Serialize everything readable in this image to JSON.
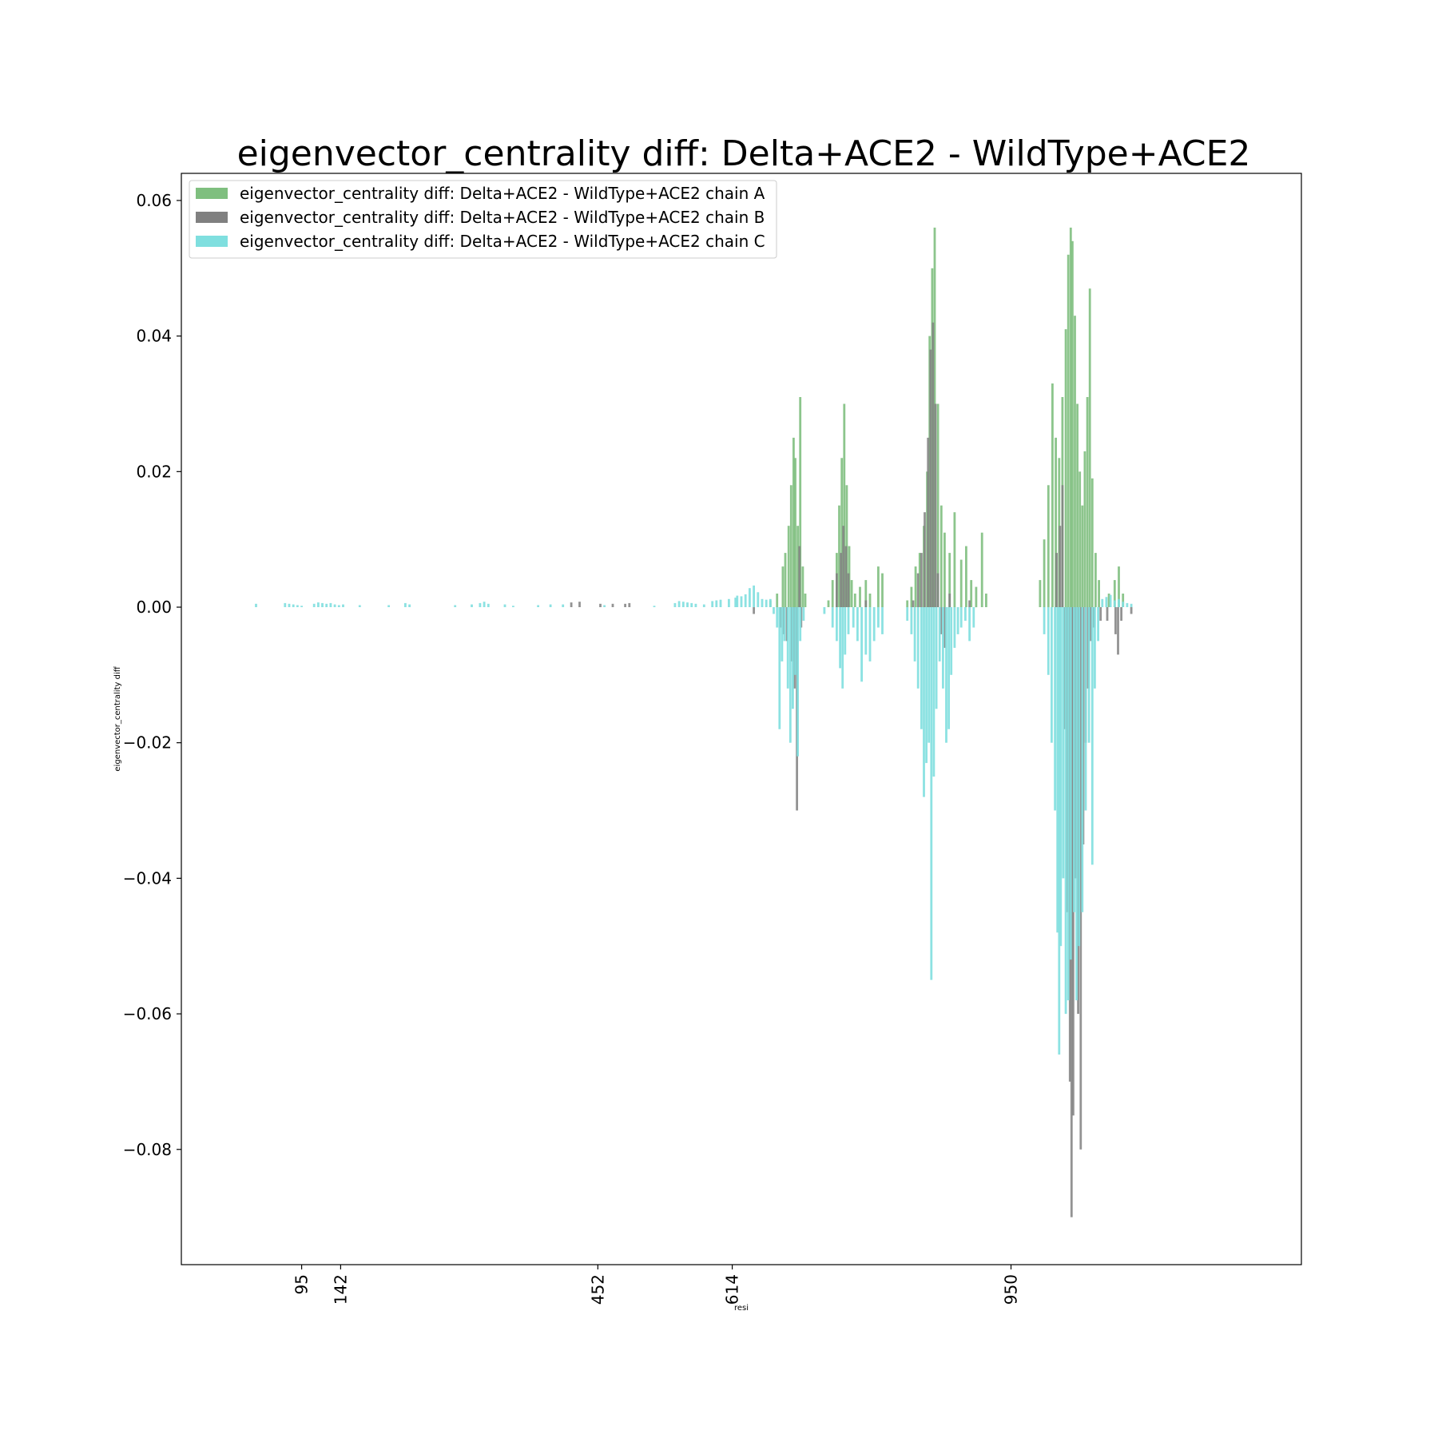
{
  "chart_data": {
    "type": "bar",
    "title": "eigenvector_centrality diff: Delta+ACE2 - WildType+ACE2",
    "xlabel": "resi",
    "ylabel": "eigenvector_centrality diff",
    "xlim": [
      -50,
      1300
    ],
    "ylim": [
      -0.097,
      0.064
    ],
    "x_ticks": [
      95,
      142,
      452,
      614,
      950
    ],
    "y_ticks": [
      0.06,
      0.04,
      0.02,
      0.0,
      -0.02,
      -0.04,
      -0.06,
      -0.08
    ],
    "y_tick_labels": [
      "0.06",
      "0.04",
      "0.02",
      "0.00",
      "−0.02",
      "−0.04",
      "−0.06",
      "−0.08"
    ],
    "grid": false,
    "legend_position": "top-left",
    "series": [
      {
        "name": "eigenvector_centrality diff: Delta+ACE2 - WildType+ACE2 chain A",
        "color": "#7fbf7f",
        "points": [
          [
            660,
            0.001
          ],
          [
            668,
            0.002
          ],
          [
            675,
            0.006
          ],
          [
            678,
            0.008
          ],
          [
            682,
            0.012
          ],
          [
            685,
            0.018
          ],
          [
            688,
            0.025
          ],
          [
            690,
            0.022
          ],
          [
            693,
            0.012
          ],
          [
            696,
            0.031
          ],
          [
            699,
            0.006
          ],
          [
            702,
            0.002
          ],
          [
            730,
            0.001
          ],
          [
            735,
            0.004
          ],
          [
            740,
            0.008
          ],
          [
            743,
            0.015
          ],
          [
            746,
            0.022
          ],
          [
            749,
            0.03
          ],
          [
            752,
            0.018
          ],
          [
            755,
            0.009
          ],
          [
            758,
            0.004
          ],
          [
            762,
            0.002
          ],
          [
            768,
            0.003
          ],
          [
            775,
            0.004
          ],
          [
            780,
            0.002
          ],
          [
            790,
            0.006
          ],
          [
            795,
            0.005
          ],
          [
            825,
            0.001
          ],
          [
            830,
            0.003
          ],
          [
            835,
            0.006
          ],
          [
            840,
            0.008
          ],
          [
            845,
            0.012
          ],
          [
            849,
            0.02
          ],
          [
            852,
            0.04
          ],
          [
            855,
            0.05
          ],
          [
            858,
            0.056
          ],
          [
            862,
            0.03
          ],
          [
            866,
            0.015
          ],
          [
            870,
            0.011
          ],
          [
            876,
            0.008
          ],
          [
            882,
            0.014
          ],
          [
            890,
            0.007
          ],
          [
            896,
            0.009
          ],
          [
            902,
            0.004
          ],
          [
            908,
            0.003
          ],
          [
            915,
            0.011
          ],
          [
            920,
            0.002
          ],
          [
            985,
            0.004
          ],
          [
            990,
            0.01
          ],
          [
            995,
            0.018
          ],
          [
            1000,
            0.033
          ],
          [
            1004,
            0.025
          ],
          [
            1008,
            0.022
          ],
          [
            1012,
            0.031
          ],
          [
            1016,
            0.041
          ],
          [
            1019,
            0.052
          ],
          [
            1022,
            0.056
          ],
          [
            1024,
            0.054
          ],
          [
            1027,
            0.043
          ],
          [
            1030,
            0.03
          ],
          [
            1033,
            0.02
          ],
          [
            1036,
            0.015
          ],
          [
            1039,
            0.023
          ],
          [
            1042,
            0.031
          ],
          [
            1045,
            0.047
          ],
          [
            1048,
            0.019
          ],
          [
            1052,
            0.008
          ],
          [
            1056,
            0.004
          ],
          [
            1068,
            0.002
          ],
          [
            1075,
            0.004
          ],
          [
            1080,
            0.006
          ],
          [
            1085,
            0.002
          ]
        ]
      },
      {
        "name": "eigenvector_centrality diff: Delta+ACE2 - WildType+ACE2 chain B",
        "color": "#808080",
        "points": [
          [
            420,
            0.0007
          ],
          [
            430,
            0.0008
          ],
          [
            455,
            0.0005
          ],
          [
            470,
            0.0005
          ],
          [
            485,
            0.0005
          ],
          [
            490,
            0.0006
          ],
          [
            640,
            -0.001
          ],
          [
            672,
            -0.003
          ],
          [
            676,
            -0.004
          ],
          [
            680,
            -0.005
          ],
          [
            686,
            -0.008
          ],
          [
            689,
            -0.012
          ],
          [
            692,
            -0.03
          ],
          [
            695,
            0.009
          ],
          [
            697,
            -0.003
          ],
          [
            740,
            0.005
          ],
          [
            745,
            0.008
          ],
          [
            748,
            0.012
          ],
          [
            751,
            0.009
          ],
          [
            754,
            0.005
          ],
          [
            775,
            0.001
          ],
          [
            832,
            0.001
          ],
          [
            838,
            0.005
          ],
          [
            842,
            0.008
          ],
          [
            846,
            0.014
          ],
          [
            850,
            0.025
          ],
          [
            853,
            0.038
          ],
          [
            856,
            0.042
          ],
          [
            859,
            0.03
          ],
          [
            862,
            0.005
          ],
          [
            866,
            -0.004
          ],
          [
            870,
            -0.006
          ],
          [
            876,
            0.002
          ],
          [
            900,
            0.001
          ],
          [
            1005,
            0.008
          ],
          [
            1009,
            0.012
          ],
          [
            1012,
            0.018
          ],
          [
            1015,
            -0.018
          ],
          [
            1018,
            -0.045
          ],
          [
            1021,
            -0.07
          ],
          [
            1023,
            -0.09
          ],
          [
            1025,
            -0.075
          ],
          [
            1028,
            -0.04
          ],
          [
            1031,
            -0.06
          ],
          [
            1034,
            -0.08
          ],
          [
            1037,
            -0.035
          ],
          [
            1040,
            -0.02
          ],
          [
            1043,
            -0.012
          ],
          [
            1046,
            -0.005
          ],
          [
            1050,
            -0.003
          ],
          [
            1058,
            -0.002
          ],
          [
            1066,
            -0.002
          ],
          [
            1076,
            -0.004
          ],
          [
            1079,
            -0.007
          ],
          [
            1083,
            -0.002
          ],
          [
            1095,
            -0.001
          ]
        ]
      },
      {
        "name": "eigenvector_centrality diff: Delta+ACE2 - WildType+ACE2 chain C",
        "color": "#7fdfdf",
        "points": [
          [
            40,
            0.0005
          ],
          [
            75,
            0.0006
          ],
          [
            80,
            0.0005
          ],
          [
            85,
            0.0004
          ],
          [
            90,
            0.0003
          ],
          [
            95,
            0.0002
          ],
          [
            110,
            0.0005
          ],
          [
            115,
            0.0007
          ],
          [
            120,
            0.0006
          ],
          [
            125,
            0.0005
          ],
          [
            130,
            0.0006
          ],
          [
            135,
            0.0004
          ],
          [
            140,
            0.0003
          ],
          [
            145,
            0.0004
          ],
          [
            165,
            0.0003
          ],
          [
            200,
            0.0003
          ],
          [
            220,
            0.0006
          ],
          [
            225,
            0.0004
          ],
          [
            280,
            0.0003
          ],
          [
            300,
            0.0004
          ],
          [
            310,
            0.0006
          ],
          [
            315,
            0.0008
          ],
          [
            320,
            0.0005
          ],
          [
            340,
            0.0004
          ],
          [
            350,
            0.0002
          ],
          [
            380,
            0.0003
          ],
          [
            395,
            0.0004
          ],
          [
            410,
            0.0004
          ],
          [
            460,
            0.0003
          ],
          [
            520,
            0.0002
          ],
          [
            545,
            0.0006
          ],
          [
            550,
            0.0009
          ],
          [
            555,
            0.0008
          ],
          [
            560,
            0.0007
          ],
          [
            565,
            0.0006
          ],
          [
            570,
            0.0005
          ],
          [
            580,
            0.0004
          ],
          [
            590,
            0.0009
          ],
          [
            595,
            0.001
          ],
          [
            600,
            0.0011
          ],
          [
            610,
            0.0012
          ],
          [
            618,
            0.0014
          ],
          [
            620,
            0.0017
          ],
          [
            625,
            0.0016
          ],
          [
            630,
            0.0019
          ],
          [
            635,
            0.0028
          ],
          [
            640,
            0.0032
          ],
          [
            645,
            0.0022
          ],
          [
            650,
            0.0012
          ],
          [
            655,
            0.0011
          ],
          [
            660,
            0.0012
          ],
          [
            664,
            -0.001
          ],
          [
            668,
            -0.003
          ],
          [
            671,
            -0.018
          ],
          [
            674,
            -0.008
          ],
          [
            677,
            -0.005
          ],
          [
            681,
            -0.012
          ],
          [
            684,
            -0.02
          ],
          [
            687,
            -0.015
          ],
          [
            690,
            -0.01
          ],
          [
            693,
            -0.022
          ],
          [
            696,
            -0.005
          ],
          [
            700,
            -0.002
          ],
          [
            725,
            -0.001
          ],
          [
            735,
            -0.003
          ],
          [
            740,
            -0.005
          ],
          [
            744,
            -0.009
          ],
          [
            747,
            -0.012
          ],
          [
            750,
            -0.007
          ],
          [
            754,
            -0.004
          ],
          [
            760,
            -0.003
          ],
          [
            765,
            -0.005
          ],
          [
            770,
            -0.011
          ],
          [
            775,
            -0.007
          ],
          [
            780,
            -0.008
          ],
          [
            785,
            -0.005
          ],
          [
            790,
            -0.003
          ],
          [
            795,
            -0.004
          ],
          [
            825,
            -0.002
          ],
          [
            830,
            -0.004
          ],
          [
            834,
            -0.008
          ],
          [
            838,
            -0.012
          ],
          [
            842,
            -0.018
          ],
          [
            845,
            -0.028
          ],
          [
            848,
            -0.023
          ],
          [
            851,
            -0.02
          ],
          [
            854,
            -0.055
          ],
          [
            857,
            -0.025
          ],
          [
            860,
            -0.015
          ],
          [
            864,
            -0.008
          ],
          [
            868,
            -0.012
          ],
          [
            872,
            -0.02
          ],
          [
            875,
            -0.018
          ],
          [
            878,
            -0.01
          ],
          [
            882,
            -0.006
          ],
          [
            886,
            -0.004
          ],
          [
            890,
            -0.003
          ],
          [
            895,
            -0.002
          ],
          [
            900,
            -0.005
          ],
          [
            905,
            -0.003
          ],
          [
            990,
            -0.004
          ],
          [
            995,
            -0.01
          ],
          [
            999,
            -0.02
          ],
          [
            1003,
            -0.03
          ],
          [
            1006,
            -0.048
          ],
          [
            1008,
            -0.066
          ],
          [
            1010,
            -0.05
          ],
          [
            1013,
            -0.04
          ],
          [
            1016,
            -0.06
          ],
          [
            1019,
            -0.058
          ],
          [
            1022,
            -0.052
          ],
          [
            1026,
            -0.045
          ],
          [
            1029,
            -0.058
          ],
          [
            1032,
            -0.05
          ],
          [
            1036,
            -0.045
          ],
          [
            1040,
            -0.03
          ],
          [
            1044,
            -0.02
          ],
          [
            1048,
            -0.038
          ],
          [
            1051,
            -0.012
          ],
          [
            1055,
            -0.005
          ],
          [
            1060,
            0.0012
          ],
          [
            1065,
            0.0015
          ],
          [
            1070,
            0.0018
          ],
          [
            1075,
            0.001
          ],
          [
            1080,
            0.0012
          ],
          [
            1085,
            0.0008
          ],
          [
            1090,
            0.0006
          ],
          [
            1095,
            0.0005
          ]
        ]
      }
    ]
  }
}
